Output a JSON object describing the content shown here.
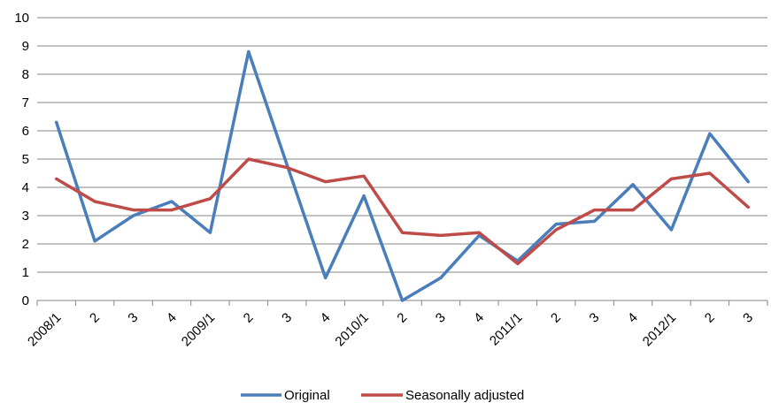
{
  "chart_data": {
    "type": "line",
    "categories": [
      "2008/1",
      "2",
      "3",
      "4",
      "2009/1",
      "2",
      "3",
      "4",
      "2010/1",
      "2",
      "3",
      "4",
      "2011/1",
      "2",
      "3",
      "4",
      "2012/1",
      "2",
      "3"
    ],
    "series": [
      {
        "name": "Original",
        "color": "#4a7ebb",
        "values": [
          6.3,
          2.1,
          3.0,
          3.5,
          2.4,
          8.8,
          4.8,
          0.8,
          3.7,
          0.0,
          0.8,
          2.3,
          1.4,
          2.7,
          2.8,
          4.1,
          2.5,
          5.9,
          4.2
        ]
      },
      {
        "name": "Seasonally adjusted",
        "color": "#be4b48",
        "values": [
          4.3,
          3.5,
          3.2,
          3.2,
          3.6,
          5.0,
          4.7,
          4.2,
          4.4,
          2.4,
          2.3,
          2.4,
          1.3,
          2.5,
          3.2,
          3.2,
          4.3,
          4.5,
          3.3
        ]
      }
    ],
    "yticks": [
      "0",
      "1",
      "2",
      "3",
      "4",
      "5",
      "6",
      "7",
      "8",
      "9",
      "10"
    ],
    "ylim": [
      0,
      10
    ],
    "grid": true,
    "legend_position": "bottom-center",
    "title": "",
    "xlabel": "",
    "ylabel": ""
  }
}
